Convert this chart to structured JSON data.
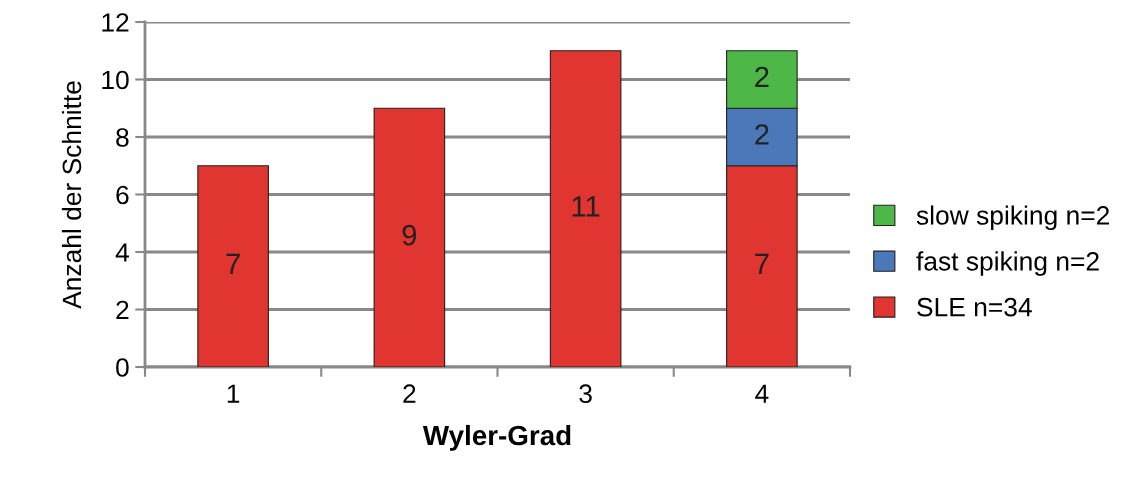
{
  "chart_data": {
    "type": "bar",
    "stacked": true,
    "xlabel": "Wyler-Grad",
    "ylabel": "Anzahl der Schnitte",
    "categories": [
      "1",
      "2",
      "3",
      "4"
    ],
    "series": [
      {
        "name": "SLE n=34",
        "color": "#e03530",
        "values": [
          7,
          9,
          11,
          7
        ]
      },
      {
        "name": "fast spiking n=2",
        "color": "#4a78b8",
        "values": [
          null,
          null,
          null,
          2
        ]
      },
      {
        "name": "slow spiking n=2",
        "color": "#4db848",
        "values": [
          null,
          null,
          null,
          2
        ]
      }
    ],
    "ylim": [
      0,
      12
    ],
    "yticks": [
      0,
      2,
      4,
      6,
      8,
      10,
      12
    ],
    "grid": "y",
    "legend": "right",
    "data_labels": true
  }
}
